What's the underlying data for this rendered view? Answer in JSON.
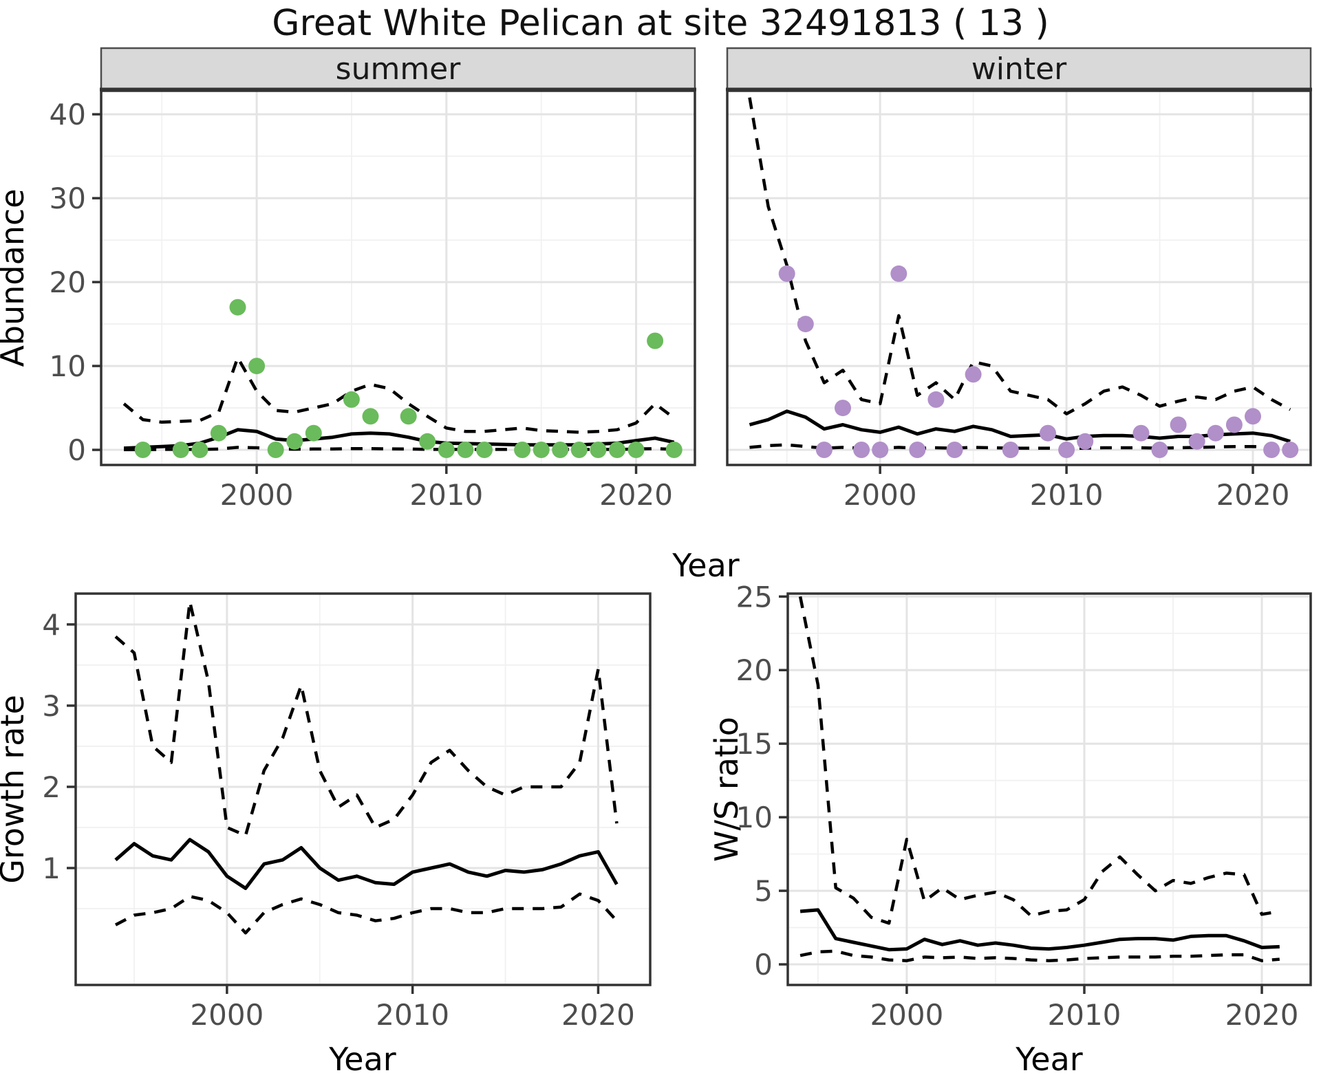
{
  "title": "Great White Pelican at site 32491813 ( 13 )",
  "colors": {
    "summer_point": "#6ABB5B",
    "winter_point": "#B18FC9",
    "line": "#000000",
    "strip_bg": "#D9D9D9",
    "strip_border": "#4D4D4D",
    "panel_border": "#333333",
    "grid_major": "#E4E4E4",
    "grid_minor": "#F1F1F1",
    "tick_label": "#4D4D4D",
    "background": "#FFFFFF"
  },
  "chart_data": [
    {
      "id": "abundance-summer",
      "type": "line+scatter",
      "facet": "summer",
      "ylabel": "Abundance",
      "xlabel": "Year",
      "xlim": [
        1991.8,
        2023.1
      ],
      "ylim": [
        -1.8,
        42.8
      ],
      "x_ticks": [
        2000,
        2010,
        2020
      ],
      "x_minor": [
        1995,
        2005,
        2015
      ],
      "y_ticks": [
        0,
        10,
        20,
        30,
        40
      ],
      "y_minor": [
        5,
        15,
        25,
        35
      ],
      "series": {
        "years": [
          1993,
          1994,
          1995,
          1996,
          1997,
          1998,
          1999,
          2000,
          2001,
          2002,
          2003,
          2004,
          2005,
          2006,
          2007,
          2008,
          2009,
          2010,
          2011,
          2012,
          2013,
          2014,
          2015,
          2016,
          2017,
          2018,
          2019,
          2020,
          2021,
          2022
        ],
        "fit": [
          0.2,
          0.3,
          0.4,
          0.5,
          0.8,
          1.5,
          2.4,
          2.2,
          1.3,
          1.1,
          1.3,
          1.5,
          1.9,
          2.0,
          1.9,
          1.5,
          1.0,
          0.8,
          0.75,
          0.7,
          0.65,
          0.6,
          0.6,
          0.6,
          0.6,
          0.7,
          0.8,
          1.1,
          1.4,
          0.9
        ],
        "upper_ci": [
          5.5,
          3.6,
          3.3,
          3.4,
          3.5,
          4.5,
          11,
          7,
          4.7,
          4.5,
          5.0,
          5.5,
          7.0,
          7.8,
          7.3,
          5.5,
          4.0,
          2.6,
          2.2,
          2.2,
          2.4,
          2.6,
          2.3,
          2.2,
          2.1,
          2.2,
          2.4,
          3.2,
          5.5,
          3.8
        ],
        "lower_ci": [
          0.02,
          0.02,
          0.05,
          0.05,
          0.05,
          0.1,
          0.3,
          0.25,
          0.1,
          0.08,
          0.1,
          0.1,
          0.15,
          0.15,
          0.12,
          0.1,
          0.05,
          0.05,
          0.05,
          0.05,
          0.05,
          0.05,
          0.05,
          0.05,
          0.05,
          0.05,
          0.05,
          0.1,
          0.15,
          0.05
        ]
      },
      "points": {
        "color_key": "summer_point",
        "data": [
          [
            1994,
            0
          ],
          [
            1996,
            0
          ],
          [
            1997,
            0
          ],
          [
            1998,
            2
          ],
          [
            1999,
            17
          ],
          [
            2000,
            10
          ],
          [
            2001,
            0
          ],
          [
            2002,
            1
          ],
          [
            2003,
            2
          ],
          [
            2005,
            6
          ],
          [
            2006,
            4
          ],
          [
            2008,
            4
          ],
          [
            2009,
            1
          ],
          [
            2010,
            0
          ],
          [
            2011,
            0
          ],
          [
            2012,
            0
          ],
          [
            2014,
            0
          ],
          [
            2015,
            0
          ],
          [
            2016,
            0
          ],
          [
            2017,
            0
          ],
          [
            2018,
            0
          ],
          [
            2019,
            0
          ],
          [
            2020,
            0
          ],
          [
            2021,
            13
          ],
          [
            2022,
            0
          ]
        ]
      }
    },
    {
      "id": "abundance-winter",
      "type": "line+scatter",
      "facet": "winter",
      "ylabel": "Abundance",
      "xlabel": "Year",
      "xlim": [
        1991.8,
        2023.1
      ],
      "ylim": [
        -1.8,
        42.8
      ],
      "x_ticks": [
        2000,
        2010,
        2020
      ],
      "x_minor": [
        1995,
        2005,
        2015
      ],
      "y_ticks": [
        0,
        10,
        20,
        30,
        40
      ],
      "y_minor": [
        5,
        15,
        25,
        35
      ],
      "series": {
        "years": [
          1993,
          1994,
          1995,
          1996,
          1997,
          1998,
          1999,
          2000,
          2001,
          2002,
          2003,
          2004,
          2005,
          2006,
          2007,
          2008,
          2009,
          2010,
          2011,
          2012,
          2013,
          2014,
          2015,
          2016,
          2017,
          2018,
          2019,
          2020,
          2021,
          2022
        ],
        "fit": [
          3.0,
          3.6,
          4.6,
          3.9,
          2.5,
          3.0,
          2.4,
          2.1,
          2.7,
          1.9,
          2.5,
          2.2,
          2.8,
          2.4,
          1.6,
          1.7,
          1.8,
          1.3,
          1.6,
          1.7,
          1.7,
          1.6,
          1.4,
          1.6,
          1.6,
          1.8,
          1.9,
          2.0,
          1.7,
          1.0
        ],
        "upper_ci": [
          42,
          29,
          22,
          13,
          8,
          9.5,
          6,
          5.5,
          16,
          6.5,
          8,
          6,
          10.5,
          10,
          7,
          6.5,
          6,
          4.3,
          5.5,
          7,
          7.5,
          6.5,
          5.2,
          5.8,
          6.3,
          6,
          7,
          7.5,
          6,
          4.8
        ],
        "lower_ci": [
          0.3,
          0.5,
          0.6,
          0.4,
          0.2,
          0.3,
          0.2,
          0.2,
          0.3,
          0.2,
          0.25,
          0.2,
          0.3,
          0.25,
          0.2,
          0.2,
          0.2,
          0.15,
          0.2,
          0.25,
          0.25,
          0.25,
          0.2,
          0.25,
          0.3,
          0.35,
          0.4,
          0.4,
          0.3,
          0.2
        ]
      },
      "points": {
        "color_key": "winter_point",
        "data": [
          [
            1995,
            21
          ],
          [
            1996,
            15
          ],
          [
            1997,
            0
          ],
          [
            1998,
            5
          ],
          [
            1999,
            0
          ],
          [
            2000,
            0
          ],
          [
            2001,
            21
          ],
          [
            2002,
            0
          ],
          [
            2003,
            6
          ],
          [
            2004,
            0
          ],
          [
            2005,
            9
          ],
          [
            2007,
            0
          ],
          [
            2009,
            2
          ],
          [
            2010,
            0
          ],
          [
            2011,
            1
          ],
          [
            2014,
            2
          ],
          [
            2015,
            0
          ],
          [
            2016,
            3
          ],
          [
            2017,
            1
          ],
          [
            2018,
            2
          ],
          [
            2019,
            3
          ],
          [
            2020,
            4
          ],
          [
            2021,
            0
          ],
          [
            2022,
            0
          ]
        ]
      }
    },
    {
      "id": "growth-rate",
      "type": "line",
      "facet": null,
      "ylabel": "Growth rate",
      "xlabel": "Year",
      "xlim": [
        1991.85,
        2022.8
      ],
      "ylim": [
        -0.44,
        4.38
      ],
      "x_ticks": [
        2000,
        2010,
        2020
      ],
      "x_minor": [
        1995,
        2005,
        2015
      ],
      "y_ticks": [
        1,
        2,
        3,
        4
      ],
      "y_minor": [
        0.5,
        1.5,
        2.5,
        3.5
      ],
      "series": {
        "years": [
          1994,
          1995,
          1996,
          1997,
          1998,
          1999,
          2000,
          2001,
          2002,
          2003,
          2004,
          2005,
          2006,
          2007,
          2008,
          2009,
          2010,
          2011,
          2012,
          2013,
          2014,
          2015,
          2016,
          2017,
          2018,
          2019,
          2020,
          2021
        ],
        "fit": [
          1.1,
          1.3,
          1.15,
          1.1,
          1.35,
          1.2,
          0.9,
          0.75,
          1.05,
          1.1,
          1.25,
          1.0,
          0.85,
          0.9,
          0.82,
          0.8,
          0.95,
          1.0,
          1.05,
          0.95,
          0.9,
          0.97,
          0.95,
          0.98,
          1.05,
          1.15,
          1.2,
          0.8
        ],
        "upper_ci": [
          3.85,
          3.65,
          2.5,
          2.3,
          4.28,
          3.3,
          1.5,
          1.4,
          2.2,
          2.6,
          3.25,
          2.2,
          1.75,
          1.9,
          1.5,
          1.6,
          1.9,
          2.3,
          2.45,
          2.2,
          2.0,
          1.9,
          2.0,
          2.0,
          2.0,
          2.3,
          3.45,
          1.55
        ],
        "lower_ci": [
          0.3,
          0.42,
          0.45,
          0.5,
          0.65,
          0.6,
          0.45,
          0.2,
          0.45,
          0.55,
          0.62,
          0.55,
          0.45,
          0.42,
          0.35,
          0.38,
          0.45,
          0.5,
          0.5,
          0.45,
          0.45,
          0.5,
          0.5,
          0.5,
          0.52,
          0.68,
          0.6,
          0.35
        ]
      },
      "points": null
    },
    {
      "id": "ws-ratio",
      "type": "line",
      "facet": null,
      "ylabel": "W/S ratio",
      "xlabel": "Year",
      "xlim": [
        1993.3,
        2022.75
      ],
      "ylim": [
        -1.4,
        25.2
      ],
      "x_ticks": [
        2000,
        2010,
        2020
      ],
      "x_minor": [
        1995,
        2005,
        2015
      ],
      "y_ticks": [
        0,
        5,
        10,
        15,
        20,
        25
      ],
      "y_minor": [
        2.5,
        7.5,
        12.5,
        17.5,
        22.5
      ],
      "series": {
        "years": [
          1994,
          1995,
          1996,
          1997,
          1998,
          1999,
          2000,
          2001,
          2002,
          2003,
          2004,
          2005,
          2006,
          2007,
          2008,
          2009,
          2010,
          2011,
          2012,
          2013,
          2014,
          2015,
          2016,
          2017,
          2018,
          2019,
          2020,
          2021
        ],
        "fit": [
          3.6,
          3.7,
          1.75,
          1.5,
          1.25,
          1.0,
          1.05,
          1.7,
          1.35,
          1.6,
          1.3,
          1.45,
          1.3,
          1.1,
          1.05,
          1.15,
          1.3,
          1.5,
          1.7,
          1.75,
          1.75,
          1.65,
          1.9,
          1.95,
          1.95,
          1.6,
          1.15,
          1.2
        ],
        "upper_ci": [
          25,
          19,
          5.2,
          4.5,
          3.2,
          2.8,
          8.5,
          4.3,
          5.2,
          4.4,
          4.7,
          4.9,
          4.4,
          3.3,
          3.6,
          3.7,
          4.4,
          6.3,
          7.3,
          6.1,
          5.0,
          5.7,
          5.5,
          5.9,
          6.2,
          6.1,
          3.4,
          3.6
        ],
        "lower_ci": [
          0.6,
          0.85,
          0.9,
          0.6,
          0.5,
          0.3,
          0.25,
          0.5,
          0.45,
          0.5,
          0.4,
          0.45,
          0.4,
          0.3,
          0.25,
          0.3,
          0.4,
          0.45,
          0.5,
          0.5,
          0.5,
          0.55,
          0.55,
          0.6,
          0.65,
          0.65,
          0.25,
          0.35
        ]
      },
      "points": null
    }
  ]
}
